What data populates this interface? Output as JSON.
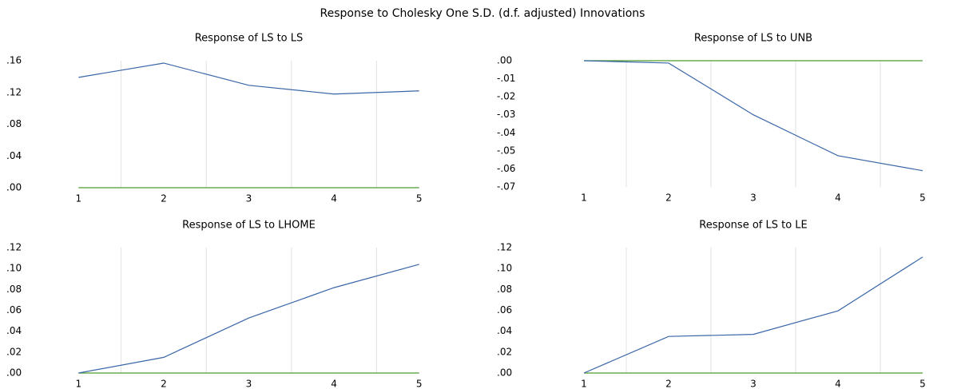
{
  "title": "Response to Cholesky One S.D. (d.f. adjusted) Innovations",
  "chart_data": [
    {
      "type": "line",
      "title": "Response of LS to LS",
      "categories": [
        "1",
        "2",
        "3",
        "4",
        "5"
      ],
      "values": [
        0.139,
        0.157,
        0.129,
        0.118,
        0.122
      ],
      "color": "#3a66a8",
      "baseline_color": "#4e9a2f",
      "ylim": [
        0,
        0.16
      ],
      "yticks": [
        {
          "value": 0,
          "label": ".00"
        },
        {
          "value": 0.04,
          "label": ".04"
        },
        {
          "value": 0.08,
          "label": ".08"
        },
        {
          "value": 0.12,
          "label": ".12"
        },
        {
          "value": 0.16,
          "label": ".16"
        }
      ],
      "grid": true
    },
    {
      "type": "line",
      "title": "Response of LS to UNB",
      "categories": [
        "1",
        "2",
        "3",
        "4",
        "5"
      ],
      "values": [
        0,
        -0.0013,
        -0.03,
        -0.0527,
        -0.061
      ],
      "color": "#3a66a8",
      "baseline_color": "#4e9a2f",
      "ylim": [
        -0.07,
        0
      ],
      "yticks": [
        {
          "value": 0,
          "label": ".00"
        },
        {
          "value": -0.01,
          "label": "-.01"
        },
        {
          "value": -0.02,
          "label": "-.02"
        },
        {
          "value": -0.03,
          "label": "-.03"
        },
        {
          "value": -0.04,
          "label": "-.04"
        },
        {
          "value": -0.05,
          "label": "-.05"
        },
        {
          "value": -0.06,
          "label": "-.06"
        },
        {
          "value": -0.07,
          "label": "-.07"
        }
      ],
      "grid": true
    },
    {
      "type": "line",
      "title": "Response of LS to LHOME",
      "categories": [
        "1",
        "2",
        "3",
        "4",
        "5"
      ],
      "values": [
        0,
        0.015,
        0.0527,
        0.0817,
        0.104
      ],
      "color": "#3a66a8",
      "baseline_color": "#4e9a2f",
      "ylim": [
        0,
        0.12
      ],
      "yticks": [
        {
          "value": 0,
          "label": ".00"
        },
        {
          "value": 0.02,
          "label": ".02"
        },
        {
          "value": 0.04,
          "label": ".04"
        },
        {
          "value": 0.06,
          "label": ".06"
        },
        {
          "value": 0.08,
          "label": ".08"
        },
        {
          "value": 0.1,
          "label": ".10"
        },
        {
          "value": 0.12,
          "label": ".12"
        }
      ],
      "grid": true
    },
    {
      "type": "line",
      "title": "Response of LS to LE",
      "categories": [
        "1",
        "2",
        "3",
        "4",
        "5"
      ],
      "values": [
        0,
        0.035,
        0.037,
        0.0595,
        0.111
      ],
      "color": "#3a66a8",
      "baseline_color": "#4e9a2f",
      "ylim": [
        0,
        0.12
      ],
      "yticks": [
        {
          "value": 0,
          "label": ".00"
        },
        {
          "value": 0.02,
          "label": ".02"
        },
        {
          "value": 0.04,
          "label": ".04"
        },
        {
          "value": 0.06,
          "label": ".06"
        },
        {
          "value": 0.08,
          "label": ".08"
        },
        {
          "value": 0.1,
          "label": ".10"
        },
        {
          "value": 0.12,
          "label": ".12"
        }
      ],
      "grid": true
    }
  ]
}
